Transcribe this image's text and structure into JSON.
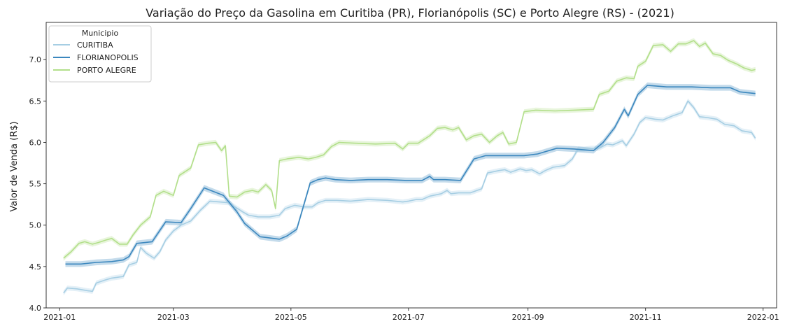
{
  "chart_data": {
    "type": "line",
    "title": "Variação do Preço da Gasolina em Curitiba (PR), Florianópolis (SC) e Porto Alegre (RS) - (2021)",
    "xlabel": "",
    "ylabel": "Valor de Venda  (R$)",
    "xlim": [
      "2020-12-25",
      "2022-01-08"
    ],
    "ylim": [
      4.0,
      7.45
    ],
    "x_ticks": [
      "2021-01-01",
      "2021-03-01",
      "2021-05-01",
      "2021-07-01",
      "2021-09-01",
      "2021-11-01",
      "2022-01-01"
    ],
    "x_tick_labels": [
      "2021-01",
      "2021-03",
      "2021-05",
      "2021-07",
      "2021-09",
      "2021-11",
      "2022-01"
    ],
    "y_ticks": [
      4.0,
      4.5,
      5.0,
      5.5,
      6.0,
      6.5,
      7.0
    ],
    "y_tick_labels": [
      "4.0",
      "4.5",
      "5.0",
      "5.5",
      "6.0",
      "6.5",
      "7.0"
    ],
    "grid": false,
    "legend": {
      "title": "Municipio",
      "placement": "top-left"
    },
    "series": [
      {
        "name": "CURITIBA",
        "color": "#a6cee3",
        "band": 0.03,
        "points": [
          [
            "2021-01-03",
            4.18
          ],
          [
            "2021-01-05",
            4.24
          ],
          [
            "2021-01-10",
            4.23
          ],
          [
            "2021-01-15",
            4.21
          ],
          [
            "2021-01-18",
            4.2
          ],
          [
            "2021-01-20",
            4.3
          ],
          [
            "2021-01-25",
            4.34
          ],
          [
            "2021-01-28",
            4.36
          ],
          [
            "2021-02-03",
            4.38
          ],
          [
            "2021-02-06",
            4.52
          ],
          [
            "2021-02-10",
            4.55
          ],
          [
            "2021-02-12",
            4.73
          ],
          [
            "2021-02-15",
            4.66
          ],
          [
            "2021-02-19",
            4.6
          ],
          [
            "2021-02-22",
            4.68
          ],
          [
            "2021-02-25",
            4.82
          ],
          [
            "2021-03-01",
            4.93
          ],
          [
            "2021-03-05",
            5.0
          ],
          [
            "2021-03-10",
            5.05
          ],
          [
            "2021-03-15",
            5.18
          ],
          [
            "2021-03-20",
            5.29
          ],
          [
            "2021-03-25",
            5.28
          ],
          [
            "2021-03-30",
            5.27
          ],
          [
            "2021-04-02",
            5.22
          ],
          [
            "2021-04-06",
            5.16
          ],
          [
            "2021-04-09",
            5.12
          ],
          [
            "2021-04-14",
            5.1
          ],
          [
            "2021-04-20",
            5.1
          ],
          [
            "2021-04-25",
            5.12
          ],
          [
            "2021-04-28",
            5.2
          ],
          [
            "2021-05-03",
            5.24
          ],
          [
            "2021-05-08",
            5.22
          ],
          [
            "2021-05-12",
            5.22
          ],
          [
            "2021-05-15",
            5.27
          ],
          [
            "2021-05-19",
            5.3
          ],
          [
            "2021-05-25",
            5.3
          ],
          [
            "2021-06-01",
            5.29
          ],
          [
            "2021-06-10",
            5.31
          ],
          [
            "2021-06-20",
            5.3
          ],
          [
            "2021-06-28",
            5.28
          ],
          [
            "2021-07-01",
            5.29
          ],
          [
            "2021-07-05",
            5.31
          ],
          [
            "2021-07-08",
            5.31
          ],
          [
            "2021-07-12",
            5.35
          ],
          [
            "2021-07-18",
            5.38
          ],
          [
            "2021-07-21",
            5.42
          ],
          [
            "2021-07-23",
            5.38
          ],
          [
            "2021-07-27",
            5.39
          ],
          [
            "2021-08-02",
            5.39
          ],
          [
            "2021-08-08",
            5.44
          ],
          [
            "2021-08-11",
            5.63
          ],
          [
            "2021-08-17",
            5.66
          ],
          [
            "2021-08-20",
            5.67
          ],
          [
            "2021-08-23",
            5.64
          ],
          [
            "2021-08-28",
            5.68
          ],
          [
            "2021-08-31",
            5.66
          ],
          [
            "2021-09-03",
            5.67
          ],
          [
            "2021-09-07",
            5.62
          ],
          [
            "2021-09-10",
            5.66
          ],
          [
            "2021-09-14",
            5.7
          ],
          [
            "2021-09-20",
            5.72
          ],
          [
            "2021-09-24",
            5.8
          ],
          [
            "2021-09-27",
            5.92
          ],
          [
            "2021-09-30",
            5.92
          ],
          [
            "2021-10-04",
            5.93
          ],
          [
            "2021-10-08",
            5.93
          ],
          [
            "2021-10-12",
            5.98
          ],
          [
            "2021-10-15",
            5.97
          ],
          [
            "2021-10-20",
            6.02
          ],
          [
            "2021-10-22",
            5.96
          ],
          [
            "2021-10-26",
            6.1
          ],
          [
            "2021-10-29",
            6.24
          ],
          [
            "2021-11-01",
            6.3
          ],
          [
            "2021-11-06",
            6.28
          ],
          [
            "2021-11-10",
            6.27
          ],
          [
            "2021-11-15",
            6.32
          ],
          [
            "2021-11-20",
            6.36
          ],
          [
            "2021-11-23",
            6.5
          ],
          [
            "2021-11-26",
            6.42
          ],
          [
            "2021-11-29",
            6.31
          ],
          [
            "2021-12-03",
            6.3
          ],
          [
            "2021-12-08",
            6.28
          ],
          [
            "2021-12-12",
            6.22
          ],
          [
            "2021-12-17",
            6.2
          ],
          [
            "2021-12-21",
            6.14
          ],
          [
            "2021-12-26",
            6.12
          ],
          [
            "2021-12-28",
            6.05
          ]
        ]
      },
      {
        "name": "FLORIANOPOLIS",
        "color": "#3b87be",
        "band": 0.035,
        "points": [
          [
            "2021-01-04",
            4.53
          ],
          [
            "2021-01-12",
            4.53
          ],
          [
            "2021-01-20",
            4.55
          ],
          [
            "2021-01-28",
            4.56
          ],
          [
            "2021-02-03",
            4.58
          ],
          [
            "2021-02-06",
            4.62
          ],
          [
            "2021-02-10",
            4.78
          ],
          [
            "2021-02-18",
            4.8
          ],
          [
            "2021-02-25",
            5.04
          ],
          [
            "2021-03-05",
            5.03
          ],
          [
            "2021-03-10",
            5.2
          ],
          [
            "2021-03-17",
            5.45
          ],
          [
            "2021-03-27",
            5.36
          ],
          [
            "2021-04-03",
            5.16
          ],
          [
            "2021-04-07",
            5.02
          ],
          [
            "2021-04-15",
            4.86
          ],
          [
            "2021-04-25",
            4.83
          ],
          [
            "2021-04-29",
            4.87
          ],
          [
            "2021-05-04",
            4.95
          ],
          [
            "2021-05-11",
            5.51
          ],
          [
            "2021-05-15",
            5.55
          ],
          [
            "2021-05-19",
            5.57
          ],
          [
            "2021-05-24",
            5.55
          ],
          [
            "2021-06-01",
            5.54
          ],
          [
            "2021-06-10",
            5.55
          ],
          [
            "2021-06-20",
            5.55
          ],
          [
            "2021-06-30",
            5.54
          ],
          [
            "2021-07-08",
            5.54
          ],
          [
            "2021-07-12",
            5.59
          ],
          [
            "2021-07-14",
            5.55
          ],
          [
            "2021-07-20",
            5.55
          ],
          [
            "2021-07-28",
            5.54
          ],
          [
            "2021-08-04",
            5.8
          ],
          [
            "2021-08-10",
            5.84
          ],
          [
            "2021-08-20",
            5.84
          ],
          [
            "2021-08-30",
            5.84
          ],
          [
            "2021-09-06",
            5.86
          ],
          [
            "2021-09-16",
            5.93
          ],
          [
            "2021-09-25",
            5.92
          ],
          [
            "2021-10-05",
            5.9
          ],
          [
            "2021-10-10",
            6.0
          ],
          [
            "2021-10-16",
            6.18
          ],
          [
            "2021-10-21",
            6.4
          ],
          [
            "2021-10-23",
            6.32
          ],
          [
            "2021-10-28",
            6.58
          ],
          [
            "2021-11-02",
            6.69
          ],
          [
            "2021-11-12",
            6.67
          ],
          [
            "2021-11-25",
            6.67
          ],
          [
            "2021-12-05",
            6.66
          ],
          [
            "2021-12-15",
            6.66
          ],
          [
            "2021-12-20",
            6.61
          ],
          [
            "2021-12-28",
            6.59
          ]
        ]
      },
      {
        "name": "PORTO ALEGRE",
        "color": "#b2df8a",
        "band": 0.03,
        "points": [
          [
            "2021-01-03",
            4.6
          ],
          [
            "2021-01-07",
            4.68
          ],
          [
            "2021-01-11",
            4.78
          ],
          [
            "2021-01-14",
            4.8
          ],
          [
            "2021-01-18",
            4.77
          ],
          [
            "2021-01-21",
            4.79
          ],
          [
            "2021-01-25",
            4.82
          ],
          [
            "2021-01-28",
            4.84
          ],
          [
            "2021-02-01",
            4.77
          ],
          [
            "2021-02-05",
            4.77
          ],
          [
            "2021-02-08",
            4.88
          ],
          [
            "2021-02-12",
            5.0
          ],
          [
            "2021-02-17",
            5.1
          ],
          [
            "2021-02-20",
            5.36
          ],
          [
            "2021-02-24",
            5.41
          ],
          [
            "2021-03-01",
            5.36
          ],
          [
            "2021-03-04",
            5.6
          ],
          [
            "2021-03-10",
            5.69
          ],
          [
            "2021-03-14",
            5.97
          ],
          [
            "2021-03-19",
            5.99
          ],
          [
            "2021-03-23",
            6.0
          ],
          [
            "2021-03-26",
            5.9
          ],
          [
            "2021-03-28",
            5.96
          ],
          [
            "2021-03-30",
            5.35
          ],
          [
            "2021-04-03",
            5.34
          ],
          [
            "2021-04-07",
            5.4
          ],
          [
            "2021-04-11",
            5.42
          ],
          [
            "2021-04-14",
            5.4
          ],
          [
            "2021-04-18",
            5.49
          ],
          [
            "2021-04-21",
            5.42
          ],
          [
            "2021-04-23",
            5.2
          ],
          [
            "2021-04-25",
            5.78
          ],
          [
            "2021-04-29",
            5.8
          ],
          [
            "2021-05-05",
            5.82
          ],
          [
            "2021-05-10",
            5.8
          ],
          [
            "2021-05-14",
            5.82
          ],
          [
            "2021-05-18",
            5.85
          ],
          [
            "2021-05-22",
            5.95
          ],
          [
            "2021-05-26",
            6.0
          ],
          [
            "2021-06-04",
            5.99
          ],
          [
            "2021-06-14",
            5.98
          ],
          [
            "2021-06-24",
            5.99
          ],
          [
            "2021-06-28",
            5.92
          ],
          [
            "2021-07-01",
            5.99
          ],
          [
            "2021-07-06",
            5.99
          ],
          [
            "2021-07-12",
            6.08
          ],
          [
            "2021-07-16",
            6.17
          ],
          [
            "2021-07-20",
            6.18
          ],
          [
            "2021-07-24",
            6.15
          ],
          [
            "2021-07-27",
            6.18
          ],
          [
            "2021-07-31",
            6.03
          ],
          [
            "2021-08-04",
            6.08
          ],
          [
            "2021-08-08",
            6.1
          ],
          [
            "2021-08-12",
            6.0
          ],
          [
            "2021-08-16",
            6.08
          ],
          [
            "2021-08-19",
            6.12
          ],
          [
            "2021-08-22",
            5.98
          ],
          [
            "2021-08-26",
            6.0
          ],
          [
            "2021-08-30",
            6.37
          ],
          [
            "2021-09-05",
            6.39
          ],
          [
            "2021-09-15",
            6.38
          ],
          [
            "2021-09-25",
            6.39
          ],
          [
            "2021-10-05",
            6.4
          ],
          [
            "2021-10-08",
            6.58
          ],
          [
            "2021-10-13",
            6.62
          ],
          [
            "2021-10-17",
            6.74
          ],
          [
            "2021-10-22",
            6.78
          ],
          [
            "2021-10-26",
            6.77
          ],
          [
            "2021-10-28",
            6.92
          ],
          [
            "2021-11-01",
            6.98
          ],
          [
            "2021-11-05",
            7.17
          ],
          [
            "2021-11-10",
            7.18
          ],
          [
            "2021-11-14",
            7.1
          ],
          [
            "2021-11-18",
            7.19
          ],
          [
            "2021-11-22",
            7.19
          ],
          [
            "2021-11-26",
            7.23
          ],
          [
            "2021-11-29",
            7.16
          ],
          [
            "2021-12-02",
            7.2
          ],
          [
            "2021-12-06",
            7.07
          ],
          [
            "2021-12-10",
            7.05
          ],
          [
            "2021-12-14",
            6.99
          ],
          [
            "2021-12-18",
            6.95
          ],
          [
            "2021-12-22",
            6.9
          ],
          [
            "2021-12-26",
            6.87
          ],
          [
            "2021-12-28",
            6.88
          ]
        ]
      }
    ]
  }
}
